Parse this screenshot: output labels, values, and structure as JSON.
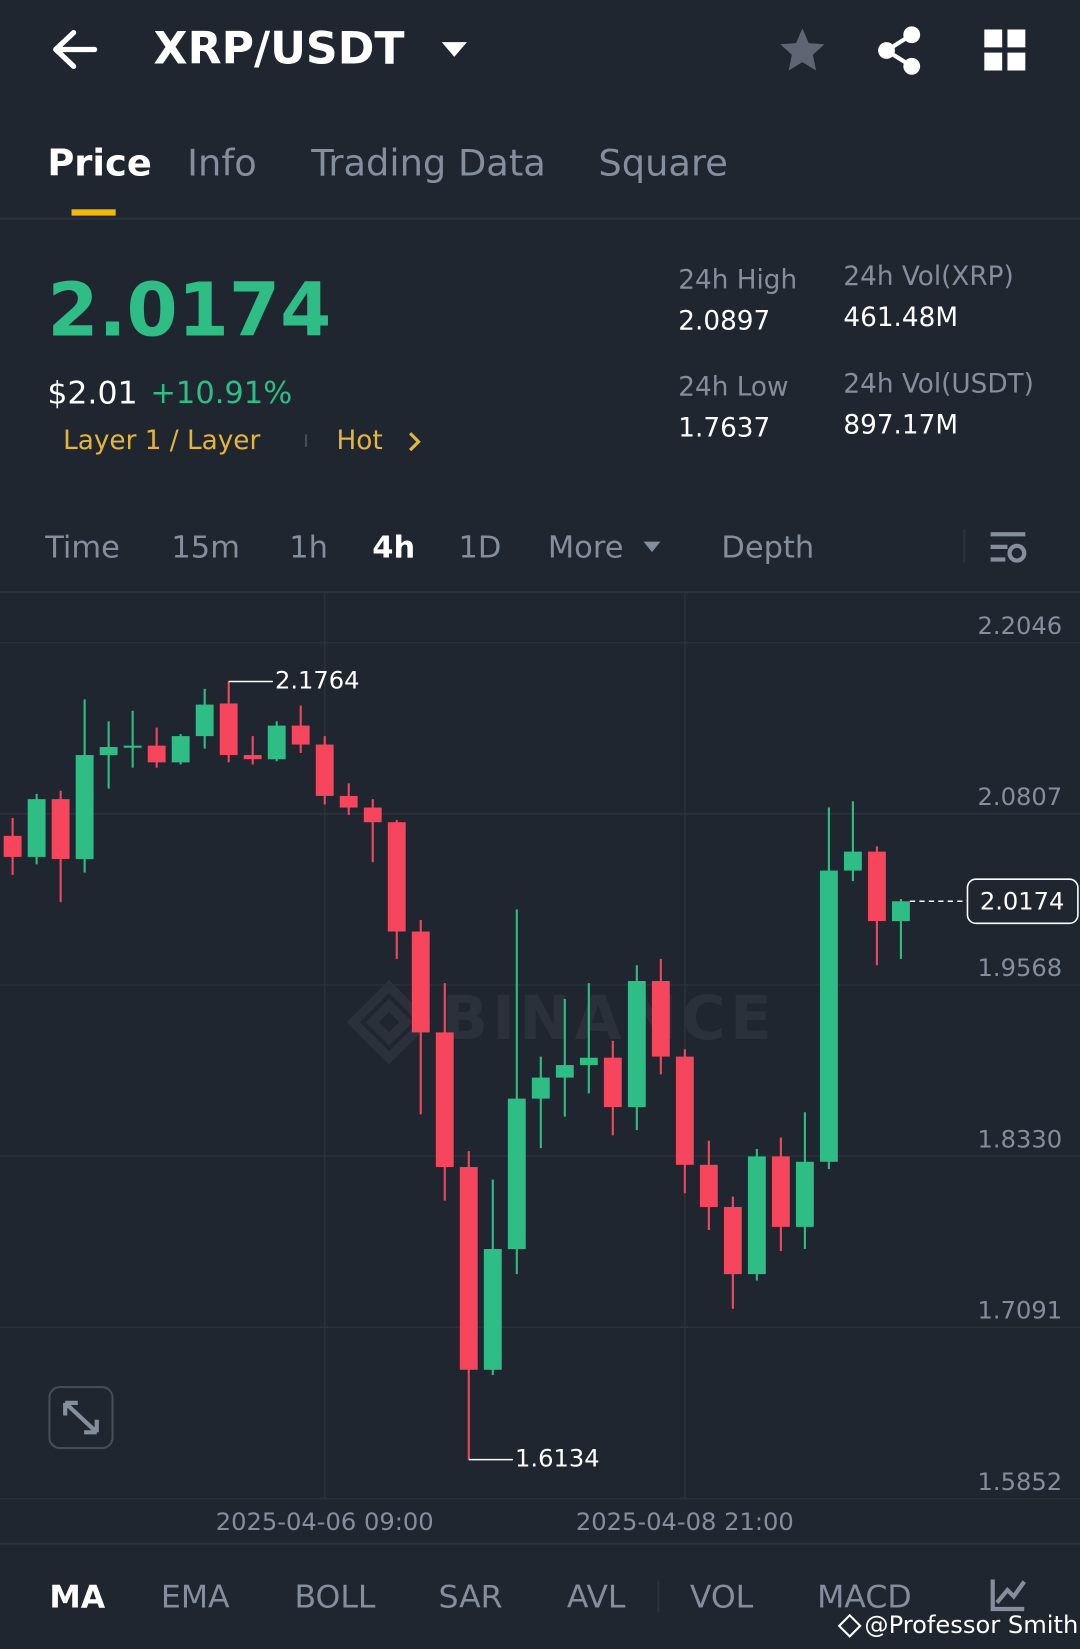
{
  "header": {
    "title": "XRP/USDT"
  },
  "tabs": [
    "Price",
    "Info",
    "Trading Data",
    "Square"
  ],
  "price": {
    "last": "2.0174",
    "usd": "$2.01",
    "change": "+10.91%",
    "tags": [
      "Layer 1 / Layer",
      "Hot"
    ]
  },
  "stats": [
    {
      "label": "24h High",
      "value": "2.0897"
    },
    {
      "label": "24h Vol(XRP)",
      "value": "461.48M"
    },
    {
      "label": "24h Low",
      "value": "1.7637"
    },
    {
      "label": "24h Vol(USDT)",
      "value": "897.17M"
    }
  ],
  "timeframes": [
    "Time",
    "15m",
    "1h",
    "4h",
    "1D",
    "More",
    "Depth"
  ],
  "chart_data": {
    "type": "candlestick",
    "watermark": "BINANCE",
    "categories": [
      null,
      null,
      null,
      null,
      null,
      null,
      null,
      null,
      null,
      null,
      null,
      null,
      null,
      "2025-04-06 09:00",
      null,
      null,
      null,
      null,
      null,
      null,
      null,
      null,
      null,
      null,
      null,
      null,
      null,
      null,
      "2025-04-08 21:00",
      null,
      null,
      null,
      null,
      null,
      null,
      null,
      null,
      null
    ],
    "open": [
      2.0647,
      2.0495,
      2.0913,
      2.048,
      2.1232,
      2.129,
      2.13,
      2.1179,
      2.1369,
      2.1605,
      2.1232,
      2.1202,
      2.1445,
      2.1308,
      2.0936,
      2.0852,
      2.0746,
      1.9955,
      1.9225,
      1.8251,
      1.6784,
      1.7658,
      1.8746,
      1.8898,
      1.8989,
      1.9042,
      1.8685,
      1.9597,
      1.905,
      1.8267,
      1.7962,
      1.7476,
      1.8328,
      1.7818,
      1.8289,
      2.0396,
      2.0533,
      2.0031
    ],
    "high": [
      2.0776,
      2.0951,
      2.0974,
      2.1635,
      2.1476,
      2.1552,
      2.143,
      2.1384,
      2.1711,
      2.1764,
      2.1369,
      2.1476,
      2.159,
      2.1369,
      2.1027,
      2.0913,
      2.0761,
      2.0038,
      1.9582,
      1.8366,
      1.816,
      2.0114,
      1.905,
      1.9468,
      1.9582,
      1.9164,
      1.9711,
      1.9757,
      1.9103,
      1.8441,
      1.8038,
      1.8381,
      1.8464,
      1.8647,
      2.0852,
      2.0898,
      2.0571,
      2.019
    ],
    "low": [
      2.0365,
      2.0441,
      2.0168,
      2.0381,
      2.0989,
      2.1141,
      2.1141,
      2.1164,
      2.1278,
      2.1179,
      2.1164,
      2.1187,
      2.1247,
      2.0875,
      2.0799,
      2.0457,
      1.9757,
      1.8632,
      1.8008,
      1.6134,
      1.6746,
      1.7476,
      1.8388,
      1.8616,
      1.8784,
      1.848,
      1.8518,
      1.8921,
      1.8061,
      1.7795,
      1.7225,
      1.743,
      1.7643,
      1.7658,
      1.8236,
      2.032,
      1.9711,
      1.9757
    ],
    "close": [
      2.0495,
      2.0913,
      2.048,
      2.1232,
      2.129,
      2.13,
      2.1179,
      2.1369,
      2.1597,
      2.1232,
      2.1202,
      2.1445,
      2.1308,
      2.0936,
      2.0852,
      2.0746,
      1.9955,
      1.9225,
      1.8251,
      1.6784,
      1.7658,
      1.8746,
      1.8898,
      1.8989,
      1.9042,
      1.8685,
      1.9597,
      1.905,
      1.8267,
      1.7962,
      1.7476,
      1.8328,
      1.7818,
      1.8289,
      2.0396,
      2.0533,
      2.0031,
      2.0174
    ],
    "up_color": "#2ebd85",
    "down_color": "#f6465d",
    "ylim": [
      1.5852,
      2.2411
    ],
    "yticks": [
      2.2046,
      2.0807,
      1.9568,
      {
        "value": 1.833,
        "label": "1.8330"
      },
      1.7091,
      1.5852
    ],
    "grid": true,
    "annotations": {
      "high": 2.1764,
      "low": 1.6134,
      "last": 2.0174
    }
  },
  "indicators": [
    "MA",
    "EMA",
    "BOLL",
    "SAR",
    "AVL",
    "VOL",
    "MACD"
  ],
  "watermark": "@Professor Smith"
}
